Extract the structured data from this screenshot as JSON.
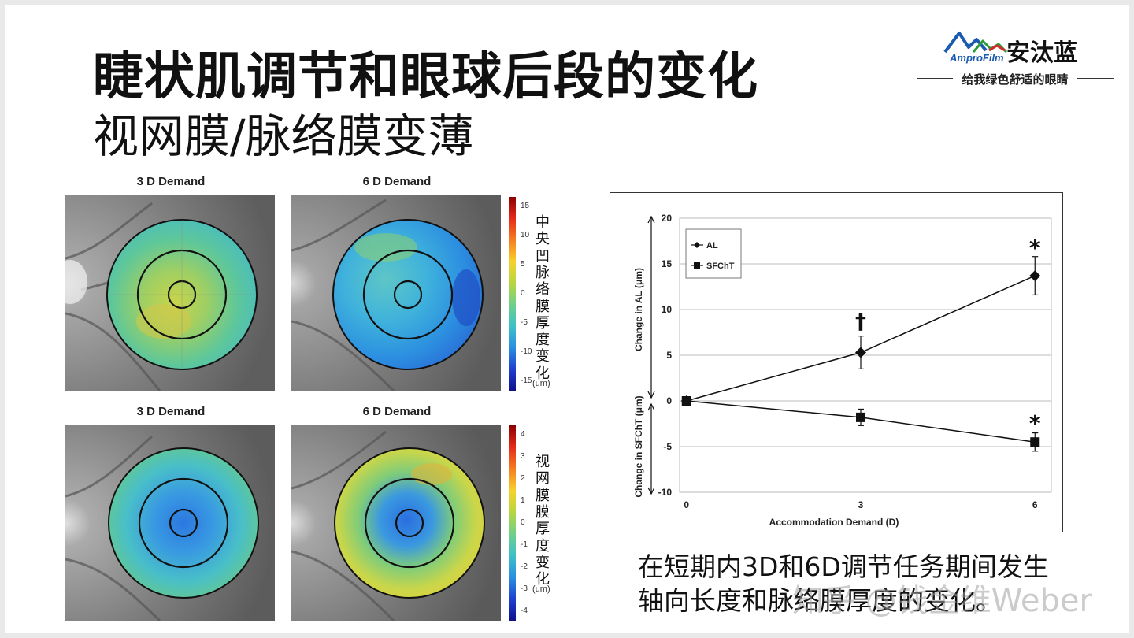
{
  "title": {
    "main": "睫状肌调节和眼球后段的变化",
    "sub": "视网膜/脉络膜变薄"
  },
  "logo": {
    "brand_en": "AmproFilm",
    "brand_cn": "安汰蓝",
    "slogan": "给我绿色舒适的眼睛",
    "colors": {
      "mountain_blue": "#1a5bb0",
      "mountain_green": "#2a9d3a",
      "mountain_red": "#d62828"
    }
  },
  "maps": {
    "top_left_label": "3 D Demand",
    "top_right_label": "6 D Demand",
    "bottom_left_label": "3 D Demand",
    "bottom_right_label": "6 D Demand"
  },
  "colorbar_choroid": {
    "ticks": [
      "15",
      "10",
      "5",
      "0",
      "-5",
      "-10",
      "-15"
    ],
    "label_chars": [
      "中",
      "央",
      "凹",
      "脉",
      "络",
      "膜",
      "厚",
      "度",
      "变",
      "化"
    ],
    "unit": "(um)"
  },
  "colorbar_retina": {
    "ticks": [
      "4",
      "3",
      "2",
      "1",
      "0",
      "-1",
      "-2",
      "-3",
      "-4"
    ],
    "label_chars": [
      "视",
      "网",
      "膜",
      "膜",
      "厚",
      "度",
      "变",
      "化"
    ],
    "unit": "(um)"
  },
  "chart_data": {
    "type": "line",
    "x": [
      0,
      3,
      6
    ],
    "xticks": [
      "0",
      "3",
      "6"
    ],
    "xlabel": "Accommodation Demand (D)",
    "ylabel_top": "Change in AL (μm)",
    "ylabel_bottom": "Change in SFChT (μm)",
    "ylim": [
      -10,
      20
    ],
    "yticks": [
      "20",
      "15",
      "10",
      "5",
      "0",
      "-5",
      "-10"
    ],
    "grid": true,
    "legend_position": "top-left",
    "series": [
      {
        "name": "AL",
        "marker": "diamond",
        "values": [
          0,
          5.3,
          13.7
        ],
        "err": [
          0,
          1.8,
          2.1
        ]
      },
      {
        "name": "SFChT",
        "marker": "square",
        "values": [
          0,
          -1.8,
          -4.5
        ],
        "err": [
          0,
          0.9,
          1.0
        ]
      }
    ],
    "annotations": [
      {
        "text": "†",
        "x": 3,
        "y": 8.8
      },
      {
        "text": "*",
        "x": 6,
        "y": 16.8
      },
      {
        "text": "*",
        "x": 6,
        "y": -2.4
      }
    ]
  },
  "caption": {
    "line1": "在短期内3D和6D调节任务期间发生",
    "line2": "轴向长度和脉络膜厚度的变化。"
  },
  "watermark": "知乎 @钱金维Weber"
}
